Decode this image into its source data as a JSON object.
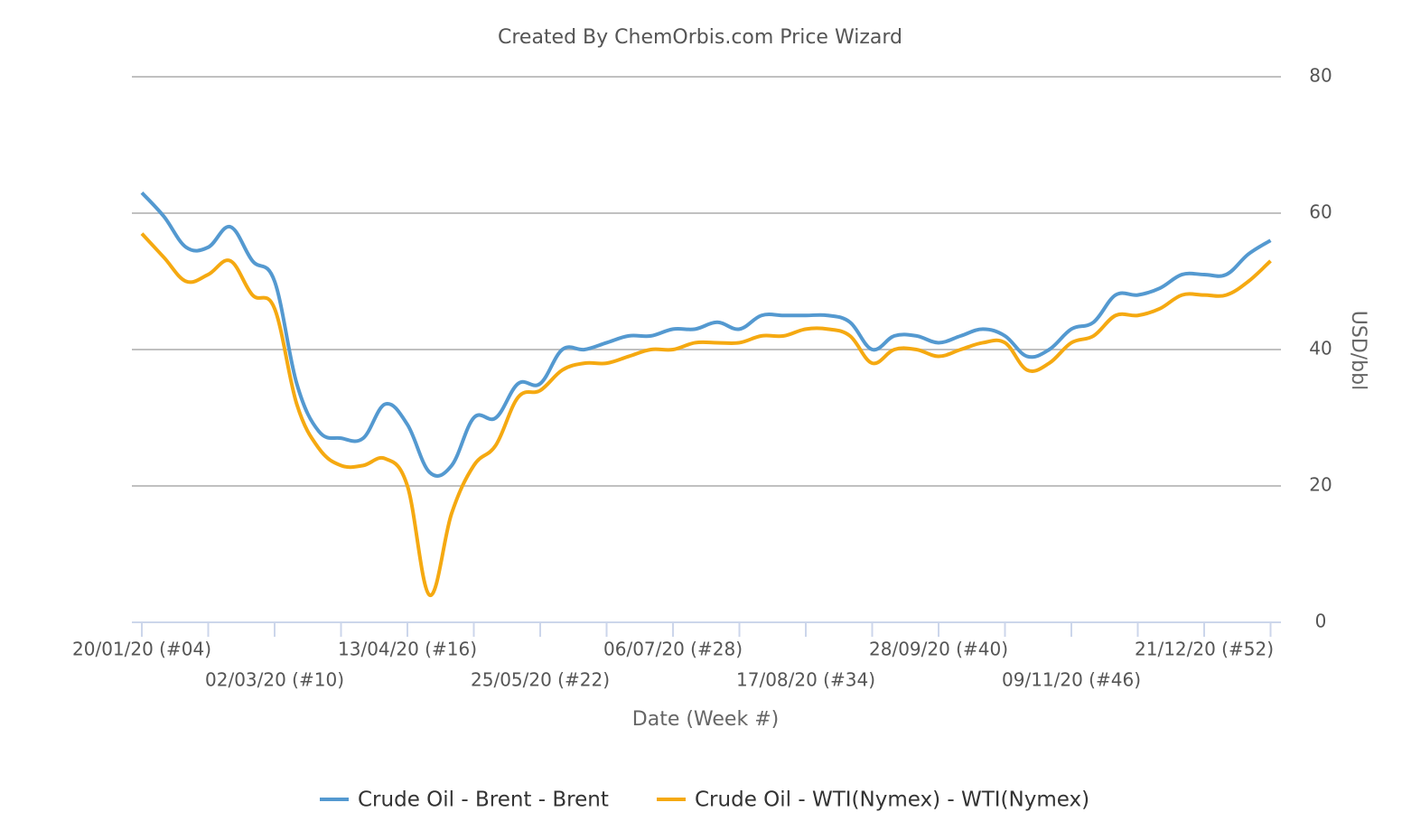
{
  "chart_data": {
    "type": "line",
    "title": "Created By ChemOrbis.com Price Wizard",
    "x_label": "Date (Week #)",
    "y_label": "USD/bbl",
    "categories": [
      "20/01/20 (#04)",
      null,
      null,
      null,
      null,
      null,
      "02/03/20 (#10)",
      null,
      null,
      null,
      null,
      null,
      "13/04/20 (#16)",
      null,
      null,
      null,
      null,
      null,
      "25/05/20 (#22)",
      null,
      null,
      null,
      null,
      null,
      "06/07/20 (#28)",
      null,
      null,
      null,
      null,
      null,
      "17/08/20 (#34)",
      null,
      null,
      null,
      null,
      null,
      "28/09/20 (#40)",
      null,
      null,
      null,
      null,
      null,
      "09/11/20 (#46)",
      null,
      null,
      null,
      null,
      null,
      "21/12/20 (#52)",
      null,
      null,
      null
    ],
    "series": [
      {
        "name": "Crude Oil - Brent - Brent",
        "color": "#5499d0",
        "values": [
          63,
          59.5,
          55,
          55,
          58,
          53,
          50,
          35,
          28,
          27,
          27,
          32,
          29,
          22,
          23,
          30,
          30,
          35,
          35,
          40,
          40,
          41,
          42,
          42,
          43,
          43,
          44,
          43,
          45,
          45,
          45,
          45,
          44,
          40,
          42,
          42,
          41,
          42,
          43,
          42,
          39,
          40,
          43,
          44,
          48,
          48,
          49,
          51,
          51,
          51,
          54,
          56
        ]
      },
      {
        "name": "Crude Oil - WTI(Nymex) - WTI(Nymex)",
        "color": "#f5a911",
        "values": [
          57,
          53.5,
          50,
          51,
          53,
          48,
          46,
          32,
          25.5,
          23,
          23,
          24,
          20,
          4,
          16,
          23,
          26,
          33,
          34,
          37,
          38,
          38,
          39,
          40,
          40,
          41,
          41,
          41,
          42,
          42,
          43,
          43,
          42,
          38,
          40,
          40,
          39,
          40,
          41,
          41,
          37,
          38,
          41,
          42,
          45,
          45,
          46,
          48,
          48,
          48,
          50,
          53
        ]
      }
    ],
    "ylim": [
      0,
      80
    ],
    "yticks": [
      0,
      20,
      40,
      60,
      80
    ],
    "grid": true,
    "y_axis_side": "right",
    "legend": "bottom"
  }
}
